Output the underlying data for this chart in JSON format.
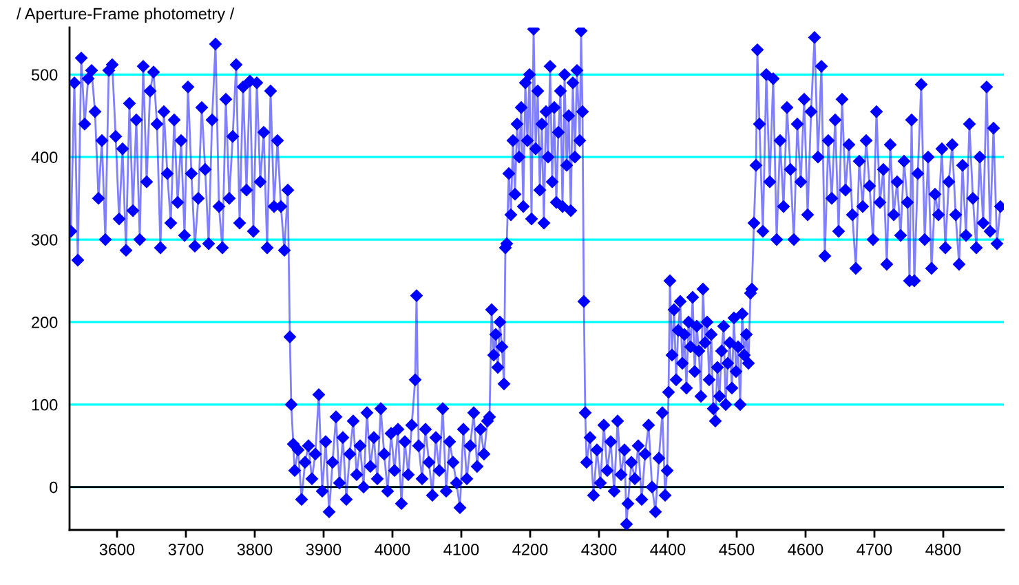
{
  "chart_data": {
    "type": "line",
    "title": "/ Aperture-Frame photometry /",
    "x": [
      3533,
      3538,
      3543,
      3548,
      3553,
      3558,
      3563,
      3568,
      3573,
      3578,
      3583,
      3588,
      3593,
      3598,
      3603,
      3608,
      3613,
      3618,
      3623,
      3628,
      3633,
      3638,
      3643,
      3648,
      3653,
      3658,
      3663,
      3668,
      3673,
      3678,
      3683,
      3688,
      3693,
      3698,
      3703,
      3708,
      3713,
      3718,
      3723,
      3728,
      3733,
      3738,
      3743,
      3748,
      3753,
      3758,
      3763,
      3768,
      3773,
      3778,
      3783,
      3788,
      3793,
      3798,
      3803,
      3808,
      3813,
      3818,
      3823,
      3828,
      3833,
      3838,
      3843,
      3848,
      3851,
      3853,
      3856,
      3858,
      3863,
      3868,
      3873,
      3878,
      3883,
      3888,
      3893,
      3898,
      3903,
      3908,
      3913,
      3918,
      3923,
      3928,
      3933,
      3938,
      3943,
      3948,
      3953,
      3958,
      3963,
      3968,
      3973,
      3978,
      3983,
      3988,
      3993,
      3998,
      4003,
      4008,
      4013,
      4018,
      4023,
      4028,
      4033,
      4035,
      4038,
      4043,
      4048,
      4053,
      4058,
      4063,
      4068,
      4073,
      4078,
      4083,
      4088,
      4093,
      4098,
      4103,
      4108,
      4113,
      4118,
      4123,
      4128,
      4133,
      4138,
      4141,
      4144,
      4147,
      4150,
      4153,
      4156,
      4159,
      4162,
      4164,
      4166,
      4169,
      4172,
      4175,
      4178,
      4181,
      4184,
      4187,
      4190,
      4193,
      4196,
      4199,
      4202,
      4205,
      4208,
      4211,
      4214,
      4217,
      4220,
      4223,
      4226,
      4229,
      4232,
      4235,
      4238,
      4241,
      4244,
      4247,
      4250,
      4253,
      4256,
      4259,
      4262,
      4265,
      4268,
      4272,
      4274,
      4276,
      4278,
      4280,
      4282,
      4287,
      4292,
      4297,
      4302,
      4307,
      4312,
      4317,
      4322,
      4327,
      4332,
      4337,
      4340,
      4342,
      4347,
      4352,
      4357,
      4362,
      4367,
      4372,
      4377,
      4382,
      4387,
      4392,
      4396,
      4399,
      4401,
      4403,
      4406,
      4409,
      4412,
      4415,
      4418,
      4421,
      4424,
      4427,
      4430,
      4433,
      4436,
      4439,
      4442,
      4445,
      4448,
      4451,
      4454,
      4457,
      4460,
      4463,
      4466,
      4469,
      4472,
      4475,
      4478,
      4481,
      4484,
      4487,
      4490,
      4493,
      4496,
      4499,
      4502,
      4505,
      4508,
      4511,
      4514,
      4517,
      4520,
      4522,
      4525,
      4528,
      4530,
      4533,
      4538,
      4543,
      4548,
      4553,
      4558,
      4563,
      4568,
      4573,
      4578,
      4583,
      4588,
      4593,
      4598,
      4603,
      4608,
      4613,
      4618,
      4623,
      4628,
      4633,
      4638,
      4643,
      4648,
      4653,
      4658,
      4663,
      4668,
      4673,
      4678,
      4683,
      4688,
      4693,
      4698,
      4703,
      4708,
      4713,
      4718,
      4723,
      4728,
      4733,
      4738,
      4743,
      4748,
      4751,
      4754,
      4758,
      4763,
      4768,
      4773,
      4778,
      4783,
      4788,
      4793,
      4798,
      4803,
      4808,
      4813,
      4818,
      4823,
      4828,
      4833,
      4838,
      4843,
      4848,
      4853,
      4858,
      4863,
      4868,
      4873,
      4878,
      4883
    ],
    "series": [
      {
        "color": "#0000ff",
        "values": [
          310,
          490,
          275,
          520,
          440,
          495,
          505,
          455,
          350,
          420,
          300,
          505,
          512,
          425,
          325,
          410,
          287,
          465,
          335,
          445,
          300,
          510,
          370,
          480,
          503,
          440,
          290,
          455,
          380,
          320,
          445,
          345,
          420,
          305,
          485,
          380,
          292,
          350,
          460,
          385,
          295,
          445,
          537,
          340,
          290,
          470,
          350,
          425,
          512,
          320,
          485,
          360,
          492,
          310,
          490,
          370,
          430,
          290,
          480,
          340,
          420,
          340,
          287,
          360,
          182,
          100,
          52,
          20,
          45,
          -15,
          30,
          50,
          10,
          40,
          112,
          -5,
          55,
          -30,
          30,
          85,
          5,
          60,
          -15,
          40,
          80,
          15,
          50,
          0,
          90,
          25,
          60,
          10,
          95,
          40,
          -5,
          65,
          20,
          70,
          -20,
          55,
          15,
          75,
          130,
          232,
          50,
          10,
          70,
          30,
          -10,
          60,
          20,
          95,
          -5,
          55,
          30,
          5,
          -25,
          70,
          10,
          50,
          90,
          25,
          70,
          40,
          80,
          85,
          215,
          160,
          185,
          145,
          200,
          170,
          125,
          290,
          295,
          380,
          330,
          420,
          355,
          440,
          400,
          460,
          340,
          490,
          420,
          500,
          325,
          555,
          410,
          480,
          360,
          440,
          320,
          455,
          400,
          510,
          370,
          460,
          345,
          430,
          480,
          340,
          500,
          390,
          450,
          335,
          490,
          400,
          505,
          420,
          553,
          455,
          225,
          90,
          30,
          60,
          -10,
          45,
          5,
          75,
          20,
          55,
          -5,
          80,
          15,
          45,
          -45,
          -20,
          30,
          10,
          50,
          -15,
          40,
          75,
          0,
          -30,
          35,
          90,
          -10,
          20,
          115,
          250,
          160,
          215,
          130,
          190,
          225,
          150,
          185,
          120,
          200,
          170,
          230,
          140,
          195,
          165,
          110,
          240,
          175,
          200,
          130,
          185,
          95,
          80,
          145,
          110,
          165,
          195,
          100,
          150,
          175,
          120,
          205,
          140,
          170,
          100,
          210,
          160,
          185,
          150,
          235,
          240,
          320,
          390,
          530,
          440,
          310,
          500,
          370,
          495,
          300,
          420,
          340,
          460,
          385,
          300,
          440,
          370,
          470,
          330,
          455,
          545,
          400,
          510,
          280,
          420,
          350,
          445,
          310,
          470,
          360,
          415,
          330,
          265,
          395,
          340,
          420,
          365,
          300,
          455,
          345,
          385,
          270,
          415,
          330,
          370,
          305,
          395,
          345,
          250,
          445,
          250,
          380,
          488,
          300,
          400,
          265,
          355,
          330,
          410,
          290,
          370,
          415,
          330,
          270,
          390,
          305,
          440,
          350,
          290,
          400,
          320,
          485,
          310,
          435,
          295,
          340
        ]
      }
    ],
    "xlim": [
      3531,
      4888
    ],
    "ylim": [
      -52,
      557
    ],
    "xticks": [
      3600,
      3700,
      3800,
      3900,
      4000,
      4100,
      4200,
      4300,
      4400,
      4500,
      4600,
      4700,
      4800
    ],
    "yticks": [
      0,
      100,
      200,
      300,
      400,
      500
    ],
    "grid": "y",
    "marker": "diamond",
    "line_style": "solid",
    "ref_lines": [
      {
        "axis": "y",
        "value": 0,
        "color": "#000000"
      }
    ]
  }
}
